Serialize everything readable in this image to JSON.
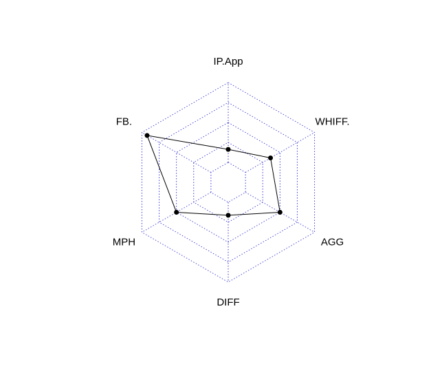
{
  "chart_data": {
    "type": "radar",
    "axes": [
      "IP.App",
      "WHIFF.",
      "AGG",
      "DIFF",
      "MPH",
      "FB."
    ],
    "rmax": 1.0,
    "grid_levels": [
      0.2,
      0.4,
      0.6,
      0.8,
      1.0
    ],
    "series": [
      {
        "values": [
          0.33,
          0.49,
          0.6,
          0.33,
          0.6,
          0.94
        ]
      }
    ],
    "colors": {
      "grid": "#3a3ad0",
      "series": "#000000"
    }
  }
}
